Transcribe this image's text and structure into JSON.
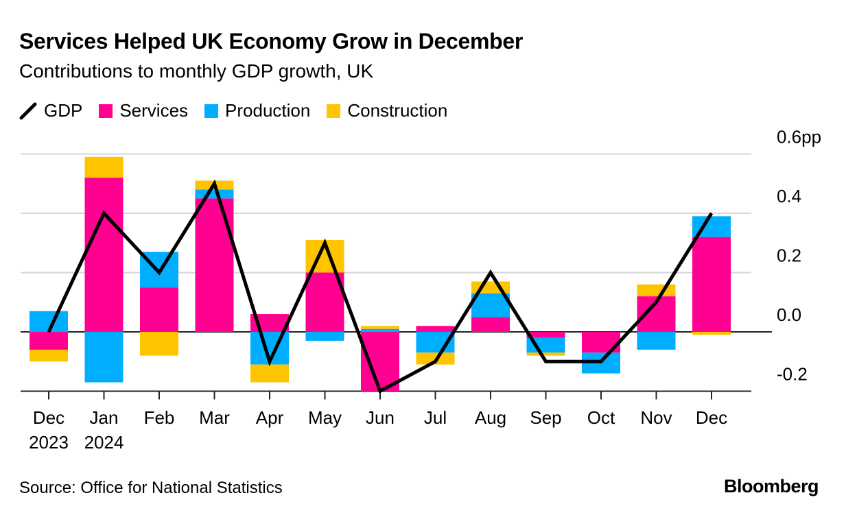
{
  "title": "Services Helped UK Economy Grow in December",
  "subtitle": "Contributions to monthly GDP growth, UK",
  "source": "Source: Office for National Statistics",
  "logo": "Bloomberg",
  "colors": {
    "Services": "#ff0090",
    "Production": "#00aeff",
    "Construction": "#ffc400",
    "GDP": "#000000"
  },
  "chart_data": {
    "type": "bar",
    "stacked": true,
    "categories": [
      "Dec 2023",
      "Jan 2024",
      "Feb",
      "Mar",
      "Apr",
      "May",
      "Jun",
      "Jul",
      "Aug",
      "Sep",
      "Oct",
      "Nov",
      "Dec"
    ],
    "tick_labels": [
      [
        "Dec",
        "2023"
      ],
      [
        "Jan",
        "2024"
      ],
      [
        "Feb",
        ""
      ],
      [
        "Mar",
        ""
      ],
      [
        "Apr",
        ""
      ],
      [
        "May",
        ""
      ],
      [
        "Jun",
        ""
      ],
      [
        "Jul",
        ""
      ],
      [
        "Aug",
        ""
      ],
      [
        "Sep",
        ""
      ],
      [
        "Oct",
        ""
      ],
      [
        "Nov",
        ""
      ],
      [
        "Dec",
        ""
      ]
    ],
    "series": [
      {
        "name": "Services",
        "type": "bar",
        "values": [
          -0.06,
          0.52,
          0.15,
          0.45,
          0.06,
          0.2,
          -0.2,
          0.02,
          0.05,
          -0.02,
          -0.07,
          0.12,
          0.32
        ]
      },
      {
        "name": "Production",
        "type": "bar",
        "values": [
          0.07,
          -0.17,
          0.12,
          0.03,
          -0.11,
          -0.03,
          0.01,
          -0.07,
          0.08,
          -0.05,
          -0.07,
          -0.06,
          0.07
        ]
      },
      {
        "name": "Construction",
        "type": "bar",
        "values": [
          -0.04,
          0.07,
          -0.08,
          0.03,
          -0.06,
          0.11,
          0.01,
          -0.04,
          0.04,
          -0.01,
          0.0,
          0.04,
          -0.01
        ]
      },
      {
        "name": "GDP",
        "type": "line",
        "values": [
          0.0,
          0.4,
          0.2,
          0.5,
          -0.1,
          0.3,
          -0.2,
          -0.1,
          0.2,
          -0.1,
          -0.1,
          0.1,
          0.4
        ]
      }
    ],
    "yticks": [
      "0.6pp",
      "0.4",
      "0.2",
      "0.0",
      "-0.2"
    ],
    "ytick_values": [
      0.6,
      0.4,
      0.2,
      0.0,
      -0.2
    ],
    "ylim": [
      -0.2,
      0.6
    ],
    "grid": true,
    "y_axis_position": "right",
    "legend_position": "top-left"
  }
}
